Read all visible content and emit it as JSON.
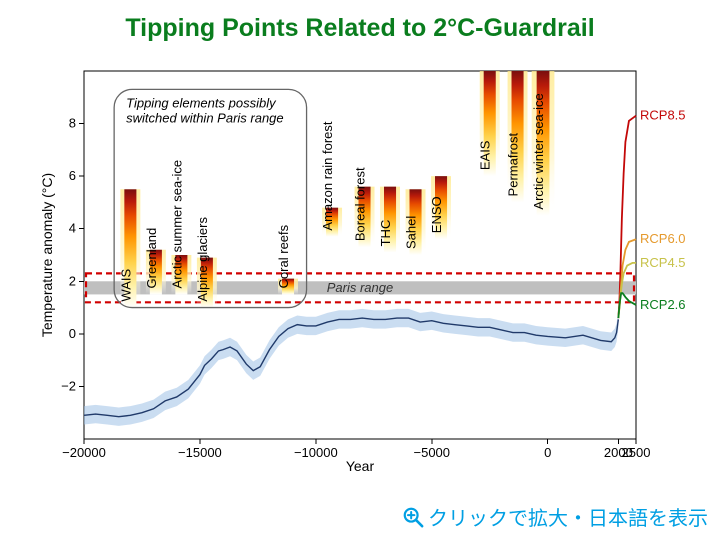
{
  "title": "Tipping Points Related to 2°C-Guardrail",
  "chart": {
    "background_color": "#ffffff",
    "axis_color": "#000000",
    "xlabel": "Year",
    "ylabel": "Temperature anomaly (°C)",
    "label_fontsize": 14,
    "tick_fontsize": 13,
    "xlim": [
      -20000,
      2500
    ],
    "ylim": [
      -4,
      10
    ],
    "xticks": [
      -20000,
      -15000,
      -10000,
      -5000,
      0,
      2000,
      2500
    ],
    "xtick_labels": [
      "−20000",
      "−15000",
      "−10000",
      "−5000",
      "0",
      "2000",
      "2500"
    ],
    "yticks": [
      -2,
      0,
      2,
      4,
      6,
      8
    ],
    "ytick_labels": [
      "−2",
      "0",
      "2",
      "4",
      "6",
      "8"
    ],
    "paris_range": {
      "low": 1.5,
      "high": 2.0,
      "label": "Paris range",
      "fill": "#bfbfbf"
    },
    "guardrail_box": {
      "xmin": -20000,
      "xmax": 2500,
      "ymin": 1.2,
      "ymax": 2.3,
      "stroke": "#d00000",
      "dash": "6,4",
      "width": 2.2
    },
    "paris_box": {
      "xmin": -18700,
      "xmax": -10400,
      "ymin": 1.0,
      "ymax": 9.3,
      "stroke": "#666666",
      "rx": 18,
      "label": "Tipping elements possibly\nswitched within Paris range"
    },
    "bar_style": {
      "width_years": 520,
      "halo_width_years": 860
    },
    "gradient": {
      "stops": [
        {
          "o": 0.0,
          "c": "#7a0f0f"
        },
        {
          "o": 0.1,
          "c": "#b81a0a"
        },
        {
          "o": 0.22,
          "c": "#e64a00"
        },
        {
          "o": 0.4,
          "c": "#ff9500"
        },
        {
          "o": 0.62,
          "c": "#ffd24a"
        },
        {
          "o": 0.82,
          "c": "#fff2a8"
        },
        {
          "o": 1.0,
          "c": "#ffffff"
        }
      ]
    },
    "tipping_bars": [
      {
        "label": "WAIS",
        "x": -18000,
        "low": 1.0,
        "high": 5.5,
        "in_box": true
      },
      {
        "label": "Greenland",
        "x": -16900,
        "low": 1.5,
        "high": 3.2,
        "in_box": true
      },
      {
        "label": "Arctic summer sea-ice",
        "x": -15800,
        "low": 1.5,
        "high": 3.0,
        "in_box": true
      },
      {
        "label": "Alpine glaciers",
        "x": -14700,
        "low": 1.0,
        "high": 2.9,
        "in_box": true
      },
      {
        "label": "Coral reefs",
        "x": -11200,
        "low": 1.5,
        "high": 2.1,
        "in_box": true
      },
      {
        "label": "Amazon rain forest",
        "x": -9300,
        "low": 3.7,
        "high": 4.8,
        "in_box": false
      },
      {
        "label": "Boreal forest",
        "x": -7900,
        "low": 3.3,
        "high": 5.6,
        "in_box": false
      },
      {
        "label": "THC",
        "x": -6800,
        "low": 3.1,
        "high": 5.6,
        "in_box": false
      },
      {
        "label": "Sahel",
        "x": -5700,
        "low": 3.0,
        "high": 5.5,
        "in_box": false
      },
      {
        "label": "ENSO",
        "x": -4600,
        "low": 3.6,
        "high": 6.0,
        "in_box": false
      },
      {
        "label": "EAIS",
        "x": -2500,
        "low": 6.0,
        "high": 10.0,
        "in_box": false
      },
      {
        "label": "Permafrost",
        "x": -1300,
        "low": 5.0,
        "high": 10.0,
        "in_box": false
      },
      {
        "label": "Arctic winter sea-ice",
        "x": -200,
        "low": 4.5,
        "high": 10.0,
        "in_box": false
      }
    ],
    "paleo_line": {
      "band_fill": "#9fc1e6",
      "band_opacity": 0.55,
      "line_stroke": "#203a6a",
      "line_width": 1.4,
      "points": [
        [
          -20000,
          -3.1
        ],
        [
          -19500,
          -3.05
        ],
        [
          -19000,
          -3.1
        ],
        [
          -18500,
          -3.15
        ],
        [
          -18000,
          -3.1
        ],
        [
          -17500,
          -3.0
        ],
        [
          -17000,
          -2.85
        ],
        [
          -16500,
          -2.55
        ],
        [
          -16000,
          -2.4
        ],
        [
          -15500,
          -2.1
        ],
        [
          -15000,
          -1.55
        ],
        [
          -14800,
          -1.2
        ],
        [
          -14500,
          -0.95
        ],
        [
          -14200,
          -0.65
        ],
        [
          -14000,
          -0.6
        ],
        [
          -13700,
          -0.5
        ],
        [
          -13400,
          -0.65
        ],
        [
          -13000,
          -1.15
        ],
        [
          -12700,
          -1.4
        ],
        [
          -12400,
          -1.25
        ],
        [
          -12000,
          -0.6
        ],
        [
          -11600,
          -0.1
        ],
        [
          -11200,
          0.2
        ],
        [
          -10800,
          0.35
        ],
        [
          -10400,
          0.3
        ],
        [
          -10000,
          0.3
        ],
        [
          -9500,
          0.45
        ],
        [
          -9000,
          0.55
        ],
        [
          -8500,
          0.55
        ],
        [
          -8000,
          0.6
        ],
        [
          -7500,
          0.55
        ],
        [
          -7000,
          0.55
        ],
        [
          -6500,
          0.6
        ],
        [
          -6000,
          0.6
        ],
        [
          -5500,
          0.45
        ],
        [
          -5000,
          0.5
        ],
        [
          -4500,
          0.4
        ],
        [
          -4000,
          0.35
        ],
        [
          -3500,
          0.3
        ],
        [
          -3000,
          0.25
        ],
        [
          -2500,
          0.25
        ],
        [
          -2000,
          0.15
        ],
        [
          -1500,
          0.05
        ],
        [
          -1000,
          0.05
        ],
        [
          -500,
          -0.05
        ],
        [
          0,
          -0.1
        ],
        [
          500,
          -0.15
        ],
        [
          1000,
          -0.05
        ],
        [
          1500,
          -0.25
        ],
        [
          1800,
          -0.3
        ],
        [
          1900,
          -0.15
        ],
        [
          1950,
          0.05
        ],
        [
          2000,
          0.55
        ]
      ],
      "band_half_width": 0.35
    },
    "rcps": [
      {
        "name": "RCP8.5",
        "color": "#c30808",
        "points": [
          [
            2000,
            0.6
          ],
          [
            2030,
            1.2
          ],
          [
            2060,
            2.4
          ],
          [
            2100,
            4.4
          ],
          [
            2150,
            6.1
          ],
          [
            2200,
            7.3
          ],
          [
            2300,
            8.1
          ],
          [
            2500,
            8.3
          ]
        ]
      },
      {
        "name": "RCP6.0",
        "color": "#e59a2e",
        "points": [
          [
            2000,
            0.6
          ],
          [
            2040,
            1.1
          ],
          [
            2080,
            1.9
          ],
          [
            2120,
            2.6
          ],
          [
            2200,
            3.2
          ],
          [
            2300,
            3.5
          ],
          [
            2500,
            3.6
          ]
        ]
      },
      {
        "name": "RCP4.5",
        "color": "#c7c24a",
        "points": [
          [
            2000,
            0.6
          ],
          [
            2050,
            1.3
          ],
          [
            2100,
            1.9
          ],
          [
            2150,
            2.3
          ],
          [
            2250,
            2.6
          ],
          [
            2400,
            2.7
          ],
          [
            2500,
            2.7
          ]
        ]
      },
      {
        "name": "RCP2.6",
        "color": "#0a7d1e",
        "points": [
          [
            2000,
            0.6
          ],
          [
            2040,
            1.2
          ],
          [
            2080,
            1.55
          ],
          [
            2120,
            1.55
          ],
          [
            2200,
            1.4
          ],
          [
            2300,
            1.25
          ],
          [
            2500,
            1.1
          ]
        ]
      }
    ]
  },
  "zoom_hint": {
    "label": "クリックで拡大・日本語を表示",
    "color": "#009fe3"
  }
}
